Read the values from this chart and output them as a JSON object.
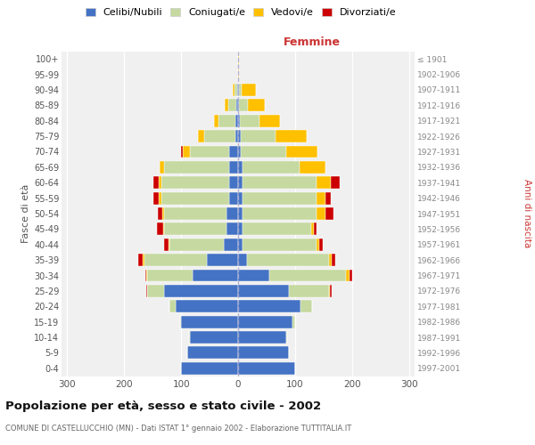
{
  "age_groups": [
    "0-4",
    "5-9",
    "10-14",
    "15-19",
    "20-24",
    "25-29",
    "30-34",
    "35-39",
    "40-44",
    "45-49",
    "50-54",
    "55-59",
    "60-64",
    "65-69",
    "70-74",
    "75-79",
    "80-84",
    "85-89",
    "90-94",
    "95-99",
    "100+"
  ],
  "birth_years": [
    "1997-2001",
    "1992-1996",
    "1987-1991",
    "1982-1986",
    "1977-1981",
    "1972-1976",
    "1967-1971",
    "1962-1966",
    "1957-1961",
    "1952-1956",
    "1947-1951",
    "1942-1946",
    "1937-1941",
    "1932-1936",
    "1927-1931",
    "1922-1926",
    "1917-1921",
    "1912-1916",
    "1907-1911",
    "1902-1906",
    "≤ 1901"
  ],
  "males": {
    "celibe": [
      100,
      90,
      85,
      100,
      110,
      130,
      80,
      55,
      25,
      20,
      20,
      15,
      15,
      15,
      15,
      5,
      4,
      3,
      2,
      0,
      0
    ],
    "coniugato": [
      0,
      0,
      1,
      2,
      10,
      30,
      80,
      110,
      95,
      110,
      110,
      120,
      120,
      115,
      70,
      55,
      30,
      15,
      5,
      0,
      0
    ],
    "vedovo": [
      0,
      0,
      0,
      0,
      0,
      0,
      1,
      2,
      2,
      2,
      3,
      5,
      5,
      8,
      12,
      10,
      8,
      5,
      2,
      0,
      0
    ],
    "divorziato": [
      0,
      0,
      0,
      0,
      0,
      2,
      2,
      8,
      8,
      10,
      8,
      8,
      8,
      0,
      3,
      0,
      0,
      0,
      0,
      0,
      0
    ]
  },
  "females": {
    "nubile": [
      100,
      90,
      85,
      95,
      110,
      90,
      55,
      15,
      8,
      8,
      8,
      8,
      8,
      8,
      5,
      5,
      3,
      2,
      2,
      0,
      0
    ],
    "coniugata": [
      0,
      0,
      1,
      5,
      20,
      70,
      135,
      145,
      130,
      120,
      130,
      130,
      130,
      100,
      80,
      60,
      35,
      15,
      5,
      0,
      0
    ],
    "vedova": [
      0,
      0,
      0,
      0,
      0,
      2,
      5,
      5,
      5,
      5,
      15,
      15,
      25,
      45,
      55,
      55,
      35,
      30,
      25,
      2,
      2
    ],
    "divorziata": [
      0,
      0,
      0,
      0,
      0,
      2,
      5,
      5,
      5,
      5,
      15,
      10,
      15,
      0,
      0,
      0,
      0,
      0,
      0,
      0,
      0
    ]
  },
  "colors": {
    "celibe": "#4472c4",
    "coniugato": "#c5d9a0",
    "vedovo": "#ffc000",
    "divorziato": "#cc0000"
  },
  "legend_labels": [
    "Celibi/Nubili",
    "Coniugati/e",
    "Vedovi/e",
    "Divorziati/e"
  ],
  "title": "Popolazione per età, sesso e stato civile - 2002",
  "subtitle": "COMUNE DI CASTELLUCCHIO (MN) - Dati ISTAT 1° gennaio 2002 - Elaborazione TUTTITALIA.IT",
  "xlabel_right": "Femmine",
  "ylabel_left": "Fasce di età",
  "ylabel_right": "Anni di nascita",
  "xlim": 310,
  "bg_color": "#f0f0f0",
  "bar_height": 0.8
}
